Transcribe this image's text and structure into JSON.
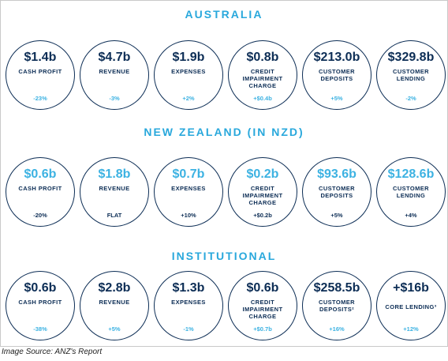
{
  "sections": [
    {
      "title": "AUSTRALIA",
      "items": [
        {
          "value": "$1.4b",
          "label": "CASH PROFIT",
          "change": "-23%"
        },
        {
          "value": "$4.7b",
          "label": "REVENUE",
          "change": "-3%"
        },
        {
          "value": "$1.9b",
          "label": "EXPENSES",
          "change": "+2%"
        },
        {
          "value": "$0.8b",
          "label": "CREDIT IMPAIRMENT CHARGE",
          "change": "+$0.4b"
        },
        {
          "value": "$213.0b",
          "label": "CUSTOMER DEPOSITS",
          "change": "+5%"
        },
        {
          "value": "$329.8b",
          "label": "CUSTOMER LENDING",
          "change": "-2%"
        }
      ]
    },
    {
      "title": "NEW ZEALAND (IN NZD)",
      "items": [
        {
          "value": "$0.6b",
          "label": "CASH PROFIT",
          "change": "-20%"
        },
        {
          "value": "$1.8b",
          "label": "REVENUE",
          "change": "FLAT"
        },
        {
          "value": "$0.7b",
          "label": "EXPENSES",
          "change": "+10%"
        },
        {
          "value": "$0.2b",
          "label": "CREDIT IMPAIRMENT CHARGE",
          "change": "+$0.2b"
        },
        {
          "value": "$93.6b",
          "label": "CUSTOMER DEPOSITS",
          "change": "+5%"
        },
        {
          "value": "$128.6b",
          "label": "CUSTOMER LENDING",
          "change": "+4%"
        }
      ]
    },
    {
      "title": "INSTITUTIONAL",
      "items": [
        {
          "value": "$0.6b",
          "label": "CASH PROFIT",
          "change": "-38%"
        },
        {
          "value": "$2.8b",
          "label": "REVENUE",
          "change": "+5%"
        },
        {
          "value": "$1.3b",
          "label": "EXPENSES",
          "change": "-1%"
        },
        {
          "value": "$0.6b",
          "label": "CREDIT IMPAIRMENT CHARGE",
          "change": "+$0.7b"
        },
        {
          "value": "$258.5b",
          "label": "CUSTOMER DEPOSITS²",
          "change": "+16%"
        },
        {
          "value": "+$16b",
          "label": "CORE LENDING³",
          "change": "+12%"
        }
      ]
    }
  ],
  "caption": "Image Source: ANZ's Report",
  "colors": {
    "navy": "#0c2d55",
    "light_blue": "#3cb2e2",
    "title_blue": "#29a8dc"
  }
}
